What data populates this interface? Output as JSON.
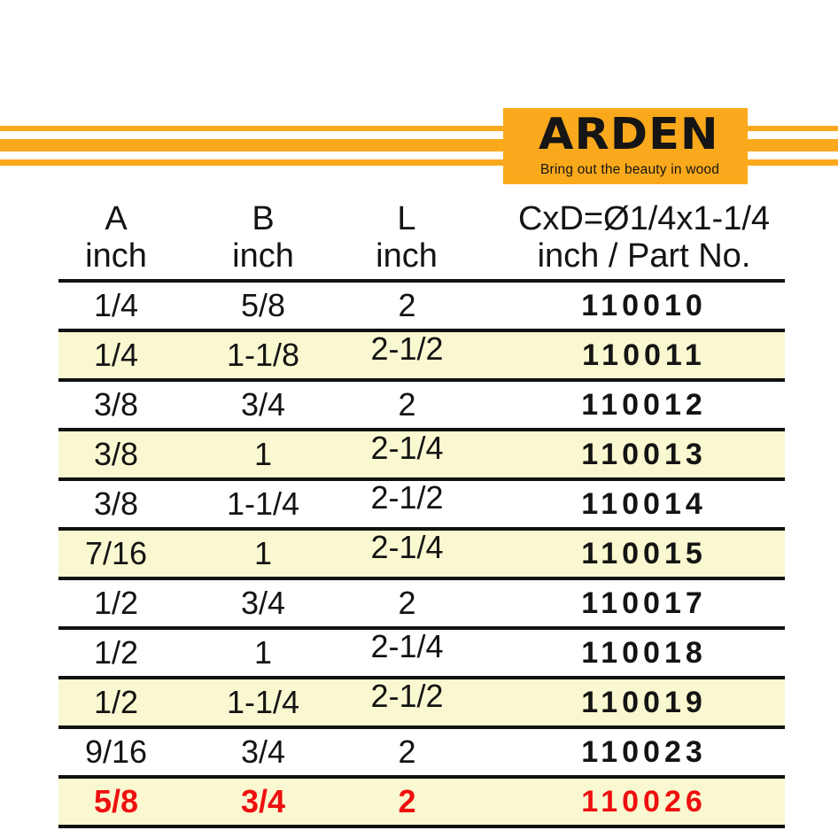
{
  "logo": {
    "brand": "ARDEN",
    "tagline": "Bring out the beauty in wood",
    "colors": {
      "orange": "#FAA91C",
      "text": "#151515"
    }
  },
  "table": {
    "columns": [
      {
        "line1": "A",
        "line2": "inch"
      },
      {
        "line1": "B",
        "line2": "inch"
      },
      {
        "line1": "L",
        "line2": "inch"
      },
      {
        "line1": "CxD=Ø1/4x1-1/4",
        "line2": "inch / Part No."
      }
    ],
    "rows": [
      {
        "a": "1/4",
        "b": "5/8",
        "l": "2",
        "part": "110010",
        "highlight": false,
        "red": false
      },
      {
        "a": "1/4",
        "b": "1-1/8",
        "l": "2-1/2",
        "part": "110011",
        "highlight": true,
        "red": false
      },
      {
        "a": "3/8",
        "b": "3/4",
        "l": "2",
        "part": "110012",
        "highlight": false,
        "red": false
      },
      {
        "a": "3/8",
        "b": "1",
        "l": "2-1/4",
        "part": "110013",
        "highlight": true,
        "red": false
      },
      {
        "a": "3/8",
        "b": "1-1/4",
        "l": "2-1/2",
        "part": "110014",
        "highlight": false,
        "red": false
      },
      {
        "a": "7/16",
        "b": "1",
        "l": "2-1/4",
        "part": "110015",
        "highlight": true,
        "red": false
      },
      {
        "a": "1/2",
        "b": "3/4",
        "l": "2",
        "part": "110017",
        "highlight": false,
        "red": false
      },
      {
        "a": "1/2",
        "b": "1",
        "l": "2-1/4",
        "part": "110018",
        "highlight": false,
        "red": false
      },
      {
        "a": "1/2",
        "b": "1-1/4",
        "l": "2-1/2",
        "part": "110019",
        "highlight": true,
        "red": false
      },
      {
        "a": "9/16",
        "b": "3/4",
        "l": "2",
        "part": "110023",
        "highlight": false,
        "red": false
      },
      {
        "a": "5/8",
        "b": "3/4",
        "l": "2",
        "part": "110026",
        "highlight": true,
        "red": true
      }
    ],
    "colors": {
      "highlight": "#FAF8D0",
      "red": "#EE0F0F",
      "line": "#111111"
    }
  }
}
